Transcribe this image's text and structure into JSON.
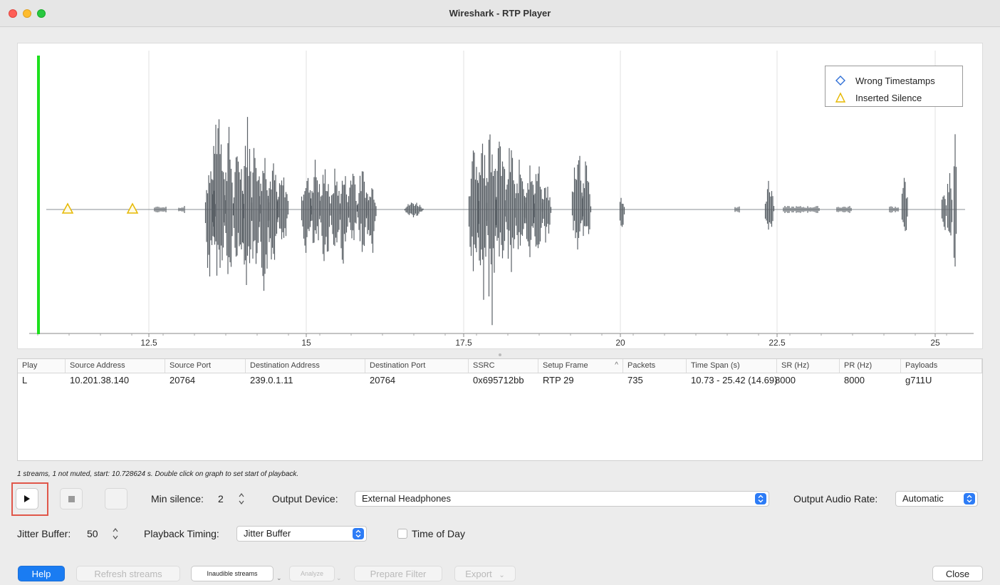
{
  "window": {
    "title": "Wireshark - RTP Player"
  },
  "graph": {
    "x_ticks": [
      "12.5",
      "15",
      "17.5",
      "20",
      "22.5",
      "25"
    ],
    "legend": {
      "wrong_timestamps": "Wrong Timestamps",
      "inserted_silence": "Inserted Silence"
    }
  },
  "table": {
    "headers": [
      "Play",
      "Source Address",
      "Source Port",
      "Destination Address",
      "Destination Port",
      "SSRC",
      "Setup Frame",
      "Packets",
      "Time Span (s)",
      "SR (Hz)",
      "PR (Hz)",
      "Payloads"
    ],
    "rows": [
      [
        "L",
        "10.201.38.140",
        "20764",
        "239.0.1.11",
        "20764",
        "0x695712bb",
        "RTP 29",
        "735",
        "10.73 - 25.42 (14.69)",
        "8000",
        "8000",
        "g711U"
      ]
    ]
  },
  "status": "1 streams, 1 not muted, start: 10.728624 s. Double click on graph to set start of playback.",
  "controls": {
    "min_silence_label": "Min silence:",
    "min_silence_value": "2",
    "output_device_label": "Output Device:",
    "output_device_value": "External Headphones",
    "output_rate_label": "Output Audio Rate:",
    "output_rate_value": "Automatic",
    "jitter_buffer_label": "Jitter Buffer:",
    "jitter_buffer_value": "50",
    "playback_timing_label": "Playback Timing:",
    "playback_timing_value": "Jitter Buffer",
    "time_of_day_label": "Time of Day"
  },
  "buttons": {
    "help": "Help",
    "refresh_streams": "Refresh streams",
    "inaudible_streams": "Inaudible streams",
    "analyze": "Analyze",
    "prepare_filter": "Prepare Filter",
    "export": "Export",
    "close": "Close"
  },
  "colors": {
    "playhead": "#1ee01e",
    "waveform": "#5a6066",
    "accent": "#1a7cf2",
    "highlight": "#e0574a",
    "silence_marker": "#e6b800",
    "timestamp_marker": "#2f6fd6"
  }
}
